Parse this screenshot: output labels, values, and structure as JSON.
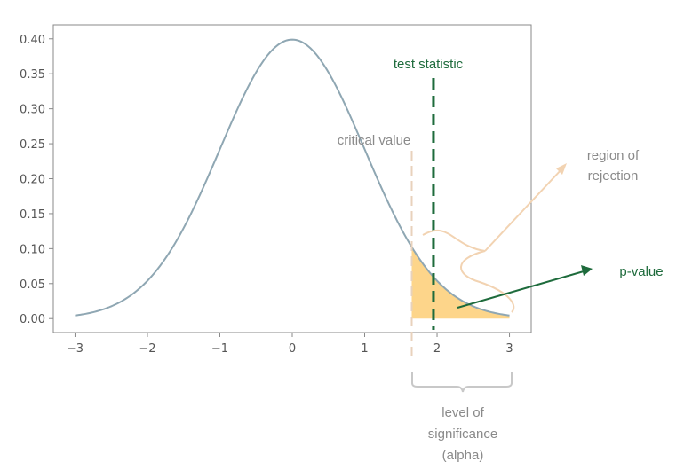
{
  "chart_data": {
    "type": "line",
    "distribution": "standard normal pdf",
    "series": [
      {
        "x": [
          -3,
          -2.5,
          -2,
          -1.5,
          -1,
          -0.5,
          0,
          0.5,
          1,
          1.5,
          2,
          2.5,
          3
        ],
        "y": [
          0.0044,
          0.0175,
          0.054,
          0.1295,
          0.242,
          0.3521,
          0.3989,
          0.3521,
          0.242,
          0.1295,
          0.054,
          0.0175,
          0.0044
        ]
      }
    ],
    "xlim": [
      -3.3,
      3.3
    ],
    "ylim": [
      -0.02,
      0.42
    ],
    "x_ticks": [
      "−3",
      "−2",
      "−1",
      "0",
      "1",
      "2",
      "3"
    ],
    "x_tick_values": [
      -3,
      -2,
      -1,
      0,
      1,
      2,
      3
    ],
    "y_ticks": [
      "0.00",
      "0.05",
      "0.10",
      "0.15",
      "0.20",
      "0.25",
      "0.30",
      "0.35",
      "0.40"
    ],
    "y_tick_values": [
      0,
      0.05,
      0.1,
      0.15,
      0.2,
      0.25,
      0.3,
      0.35,
      0.4
    ],
    "grid": false,
    "critical_value": 1.65,
    "test_statistic": 1.95,
    "shaded_region": [
      1.65,
      3
    ],
    "colors": {
      "curve": "#8fa7b3",
      "shade": "#fdd58a",
      "test_statistic": "#1e6b3c",
      "critical_value": "#e8d2bc",
      "region_arrow": "#f2d3b2",
      "brace": "#c8c8c8",
      "axis": "#888888"
    }
  },
  "annotations": {
    "test_statistic": "test statistic",
    "critical_value": "critical value",
    "region_line1": "region of",
    "region_line2": "rejection",
    "p_value": "p-value",
    "alpha_line1": "level of",
    "alpha_line2": "significance",
    "alpha_line3": "(alpha)"
  }
}
